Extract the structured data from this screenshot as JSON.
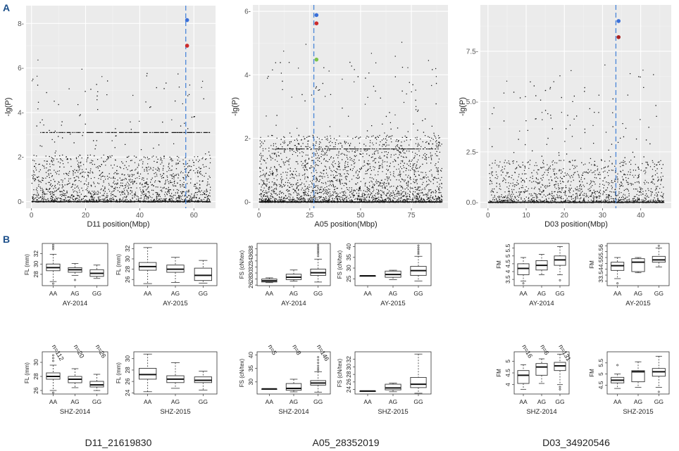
{
  "panel_labels": {
    "a": "A",
    "b": "B"
  },
  "chart_data": [
    {
      "type": "scatter",
      "id": "manhattan_d11",
      "xlabel": "D11 position(Mbp)",
      "ylabel": "-lg(P)",
      "xlim": [
        -2,
        68
      ],
      "ylim": [
        -0.3,
        8.8
      ],
      "xticks": [
        0,
        20,
        40,
        60
      ],
      "yticks": [
        0,
        2,
        4,
        6,
        8
      ],
      "ytick_labels": [
        "0-",
        "2-",
        "4-",
        "6-",
        "8-"
      ],
      "vline": 57,
      "background_snps": {
        "n": 1700,
        "xmax": 66,
        "band_y": 3.12,
        "band_from": 3,
        "band_to": 66
      },
      "highlights": [
        {
          "x": 57.5,
          "y": 8.15,
          "color": "#3a6fd8"
        },
        {
          "x": 57.5,
          "y": 7.0,
          "color": "#cc2b2b"
        }
      ]
    },
    {
      "type": "scatter",
      "id": "manhattan_a05",
      "xlabel": "A05 position(Mbp)",
      "ylabel": "-lg(P)",
      "xlim": [
        -3,
        93
      ],
      "ylim": [
        -0.2,
        6.2
      ],
      "xticks": [
        0,
        25,
        50,
        75
      ],
      "yticks": [
        0,
        2,
        4,
        6
      ],
      "ytick_labels": [
        "0-",
        "2-",
        "4-",
        "6-"
      ],
      "vline": 27,
      "background_snps": {
        "n": 2500,
        "xmax": 90,
        "band_y": 1.68,
        "band_from": 8,
        "band_to": 88
      },
      "highlights": [
        {
          "x": 28.3,
          "y": 5.88,
          "color": "#3a6fd8"
        },
        {
          "x": 28.3,
          "y": 5.62,
          "color": "#cc2b2b"
        },
        {
          "x": 28.3,
          "y": 4.48,
          "color": "#7cc44a"
        }
      ]
    },
    {
      "type": "scatter",
      "id": "manhattan_d03",
      "xlabel": "D03 position(Mbp)",
      "ylabel": "-lg(P)",
      "xlim": [
        -2,
        48
      ],
      "ylim": [
        -0.3,
        9.8
      ],
      "xticks": [
        0,
        10,
        20,
        30,
        40
      ],
      "yticks": [
        0,
        2.5,
        5,
        7.5
      ],
      "ytick_labels": [
        "0.0-",
        "2.5-",
        "5.0-",
        "7.5-"
      ],
      "vline": 33.5,
      "background_snps": {
        "n": 1400,
        "xmax": 46,
        "band_y": null
      },
      "highlights": [
        {
          "x": 34.2,
          "y": 9.0,
          "color": "#3a6fd8"
        },
        {
          "x": 34.2,
          "y": 8.2,
          "color": "#aa2222"
        }
      ]
    },
    {
      "type": "box",
      "id": "d11_ay2014",
      "xlabel": "AY-2014",
      "ylabel": "FL (mm)",
      "categories": [
        "AA",
        "AG",
        "GG"
      ],
      "ylim": [
        25.8,
        34
      ],
      "yticks": [
        28,
        30,
        32
      ],
      "boxes": [
        {
          "min": 26.6,
          "q1": 28.7,
          "median": 29.3,
          "q3": 30.0,
          "max": 31.9
        },
        {
          "min": 27.8,
          "q1": 28.4,
          "median": 28.9,
          "q3": 29.3,
          "max": 30.1
        },
        {
          "min": 27.2,
          "q1": 27.6,
          "median": 28.2,
          "q3": 28.9,
          "max": 29.8
        }
      ],
      "outliers": [
        [
          0,
          33.7
        ],
        [
          0,
          33.3
        ],
        [
          0,
          32.9
        ],
        [
          0,
          26.2
        ],
        [
          1,
          26.9
        ]
      ]
    },
    {
      "type": "box",
      "id": "d11_ay2015",
      "xlabel": "AY-2015",
      "ylabel": "FL (mm)",
      "categories": [
        "AA",
        "AG",
        "GG"
      ],
      "ylim": [
        24.8,
        33
      ],
      "yticks": [
        26,
        28,
        30,
        32
      ],
      "boxes": [
        {
          "min": 25.2,
          "q1": 27.8,
          "median": 28.5,
          "q3": 29.3,
          "max": 32.2
        },
        {
          "min": 25.4,
          "q1": 27.4,
          "median": 28.0,
          "q3": 28.8,
          "max": 30.3
        },
        {
          "min": 25.3,
          "q1": 25.8,
          "median": 26.8,
          "q3": 28.2,
          "max": 29.7
        }
      ],
      "outliers": []
    },
    {
      "type": "box",
      "id": "a05_ay2014",
      "xlabel": "AY-2014",
      "ylabel": "FS (cN/tex)",
      "categories": [
        "AA",
        "AG",
        "GG"
      ],
      "ylim": [
        25.8,
        39.8
      ],
      "yticks": [
        26,
        28,
        30,
        32,
        34,
        36,
        38
      ],
      "boxes": [
        {
          "min": 26.8,
          "q1": 27.0,
          "median": 27.4,
          "q3": 28.0,
          "max": 28.4
        },
        {
          "min": 27.3,
          "q1": 27.8,
          "median": 28.6,
          "q3": 29.6,
          "max": 31.0
        },
        {
          "min": 27.0,
          "q1": 29.2,
          "median": 30.1,
          "q3": 31.3,
          "max": 34.6
        }
      ],
      "outliers": [
        [
          2,
          39.3
        ],
        [
          2,
          38.7
        ],
        [
          2,
          38.2
        ],
        [
          2,
          37.6
        ],
        [
          2,
          37.0
        ],
        [
          2,
          36.4
        ],
        [
          2,
          35.6
        ]
      ]
    },
    {
      "type": "box",
      "id": "a05_ay2015",
      "xlabel": "AY-2015",
      "ylabel": "FS (cN/tex)",
      "categories": [
        "AA",
        "AG",
        "GG"
      ],
      "ylim": [
        21.8,
        41.5
      ],
      "yticks": [
        25,
        30,
        35,
        40
      ],
      "boxes": [
        {
          "min": 26.4,
          "q1": 26.4,
          "median": 26.4,
          "q3": 26.4,
          "max": 26.4
        },
        {
          "min": 24.6,
          "q1": 25.7,
          "median": 27.0,
          "q3": 28.6,
          "max": 29.0
        },
        {
          "min": 24.0,
          "q1": 26.6,
          "median": 28.8,
          "q3": 30.8,
          "max": 35.5
        }
      ],
      "outliers": [
        [
          2,
          40.5
        ],
        [
          2,
          39.5
        ],
        [
          2,
          38.5
        ],
        [
          2,
          37.5
        ],
        [
          2,
          36.6
        ]
      ]
    },
    {
      "type": "box",
      "id": "d03_ay2014",
      "xlabel": "AY-2014",
      "ylabel": "FM",
      "categories": [
        "AA",
        "AG",
        "GG"
      ],
      "ylim": [
        3.1,
        5.8
      ],
      "yticks": [
        3.5,
        4.0,
        4.5,
        5.0,
        5.5
      ],
      "boxes": [
        {
          "min": 3.4,
          "q1": 3.8,
          "median": 4.2,
          "q3": 4.5,
          "max": 4.9
        },
        {
          "min": 3.8,
          "q1": 4.1,
          "median": 4.4,
          "q3": 4.7,
          "max": 5.1
        },
        {
          "min": 3.8,
          "q1": 4.4,
          "median": 4.75,
          "q3": 5.0,
          "max": 5.6
        }
      ],
      "outliers": [
        [
          0,
          3.25
        ],
        [
          2,
          3.45
        ]
      ]
    },
    {
      "type": "box",
      "id": "d03_ay2015",
      "xlabel": "AY-2015",
      "ylabel": "FM",
      "categories": [
        "AA",
        "AG",
        "GG"
      ],
      "ylim": [
        2.6,
        6.2
      ],
      "yticks": [
        3.0,
        3.5,
        4.0,
        4.5,
        5.0,
        5.5,
        6.0
      ],
      "boxes": [
        {
          "min": 3.2,
          "q1": 3.9,
          "median": 4.3,
          "q3": 4.6,
          "max": 5.0
        },
        {
          "min": 3.7,
          "q1": 3.8,
          "median": 4.6,
          "q3": 4.9,
          "max": 5.0
        },
        {
          "min": 4.2,
          "q1": 4.6,
          "median": 4.8,
          "q3": 5.1,
          "max": 5.8
        }
      ],
      "outliers": [
        [
          0,
          2.8
        ],
        [
          2,
          6.0
        ]
      ]
    },
    {
      "type": "box",
      "id": "d11_shz2014",
      "xlabel": "SHZ-2014",
      "ylabel": "FL (mm)",
      "categories": [
        "AA",
        "AG",
        "GG"
      ],
      "ylim": [
        25.5,
        31.5
      ],
      "yticks": [
        26,
        28,
        30
      ],
      "group_counts": [
        "n=112",
        "n=20",
        "n=26"
      ],
      "boxes": [
        {
          "min": 26.0,
          "q1": 27.6,
          "median": 28.0,
          "q3": 28.5,
          "max": 29.6
        },
        {
          "min": 26.4,
          "q1": 27.1,
          "median": 27.6,
          "q3": 28.0,
          "max": 29.1
        },
        {
          "min": 26.0,
          "q1": 26.5,
          "median": 26.8,
          "q3": 27.3,
          "max": 28.3
        }
      ],
      "outliers": [
        [
          0,
          31.0
        ],
        [
          0,
          30.6
        ],
        [
          0,
          30.2
        ],
        [
          0,
          25.7
        ]
      ]
    },
    {
      "type": "box",
      "id": "d11_shz2015",
      "xlabel": "SHZ-2015",
      "ylabel": "FL (mm)",
      "categories": [
        "AA",
        "AG",
        "GG"
      ],
      "ylim": [
        23.8,
        31.2
      ],
      "yticks": [
        24,
        26,
        28,
        30
      ],
      "boxes": [
        {
          "min": 24.2,
          "q1": 26.4,
          "median": 27.2,
          "q3": 28.3,
          "max": 30.8
        },
        {
          "min": 24.8,
          "q1": 25.8,
          "median": 26.4,
          "q3": 27.0,
          "max": 29.3
        },
        {
          "min": 24.5,
          "q1": 25.8,
          "median": 26.2,
          "q3": 26.8,
          "max": 27.8
        }
      ],
      "outliers": []
    },
    {
      "type": "box",
      "id": "a05_shz2014",
      "xlabel": "SHZ-2014",
      "ylabel": "FS (cN/tex)",
      "categories": [
        "AA",
        "AG",
        "GG"
      ],
      "ylim": [
        25.5,
        41.2
      ],
      "yticks": [
        30,
        35,
        40
      ],
      "group_counts": [
        "n=5",
        "n=8",
        "n=146"
      ],
      "boxes": [
        {
          "min": 27.4,
          "q1": 27.4,
          "median": 27.4,
          "q3": 27.4,
          "max": 27.4
        },
        {
          "min": 26.3,
          "q1": 26.9,
          "median": 27.6,
          "q3": 29.4,
          "max": 31.0
        },
        {
          "min": 26.2,
          "q1": 28.8,
          "median": 29.6,
          "q3": 30.5,
          "max": 33.8
        }
      ],
      "outliers": [
        [
          2,
          39.2
        ],
        [
          2,
          38.2
        ],
        [
          2,
          37.1
        ],
        [
          2,
          36.0
        ],
        [
          2,
          35.1
        ],
        [
          2,
          34.4
        ]
      ]
    },
    {
      "type": "box",
      "id": "a05_shz2015",
      "xlabel": "SHZ-2015",
      "ylabel": "FS (cN/tex)",
      "categories": [
        "AA",
        "AG",
        "GG"
      ],
      "ylim": [
        22.8,
        34.0
      ],
      "yticks": [
        24,
        26,
        28,
        30,
        32
      ],
      "boxes": [
        {
          "min": 23.6,
          "q1": 23.6,
          "median": 23.6,
          "q3": 23.6,
          "max": 23.6
        },
        {
          "min": 23.4,
          "q1": 23.9,
          "median": 24.4,
          "q3": 25.4,
          "max": 25.7
        },
        {
          "min": 23.0,
          "q1": 24.5,
          "median": 25.4,
          "q3": 27.2,
          "max": 33.4
        }
      ],
      "outliers": []
    },
    {
      "type": "box",
      "id": "d03_shz2014",
      "xlabel": "SHZ-2014",
      "ylabel": "FM",
      "categories": [
        "AA",
        "AG",
        "GG"
      ],
      "ylim": [
        3.6,
        5.4
      ],
      "yticks": [
        4.0,
        4.5,
        5.0
      ],
      "group_counts": [
        "n=16",
        "n=6",
        "n=131"
      ],
      "boxes": [
        {
          "min": 3.8,
          "q1": 4.05,
          "median": 4.4,
          "q3": 4.6,
          "max": 4.85
        },
        {
          "min": 4.05,
          "q1": 4.4,
          "median": 4.75,
          "q3": 4.9,
          "max": 5.1
        },
        {
          "min": 4.0,
          "q1": 4.6,
          "median": 4.8,
          "q3": 4.95,
          "max": 5.3
        }
      ],
      "outliers": [
        [
          2,
          3.9
        ],
        [
          2,
          3.8
        ]
      ]
    },
    {
      "type": "box",
      "id": "d03_shz2015",
      "xlabel": "SHZ-2015",
      "ylabel": "FM",
      "categories": [
        "AA",
        "AG",
        "GG"
      ],
      "ylim": [
        4.1,
        6.0
      ],
      "yticks": [
        4.5,
        5.0,
        5.5
      ],
      "boxes": [
        {
          "min": 4.35,
          "q1": 4.6,
          "median": 4.72,
          "q3": 4.85,
          "max": 5.0
        },
        {
          "min": 4.4,
          "q1": 4.65,
          "median": 5.1,
          "q3": 5.15,
          "max": 5.55
        },
        {
          "min": 4.4,
          "q1": 4.9,
          "median": 5.1,
          "q3": 5.25,
          "max": 5.8
        }
      ],
      "outliers": [
        [
          0,
          5.4
        ],
        [
          2,
          4.2
        ]
      ]
    }
  ],
  "snp_labels": [
    "D11_21619830",
    "A05_28352019",
    "D03_34920546"
  ]
}
